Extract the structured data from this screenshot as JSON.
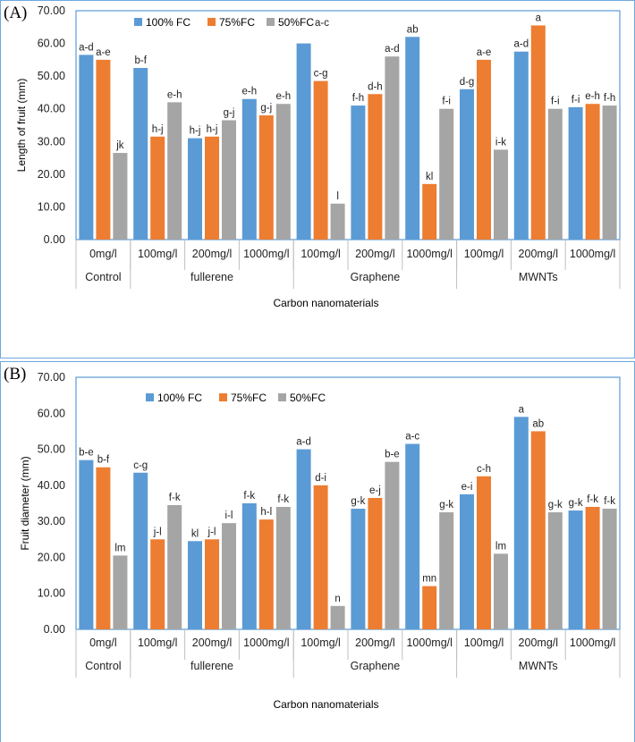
{
  "colors": {
    "s100": "#5b9bd5",
    "s75": "#ed7d31",
    "s50": "#a5a5a5"
  },
  "chart_data": [
    {
      "type": "bar",
      "panel_label": "(A)",
      "title": "",
      "xlabel": "Carbon nanomaterials",
      "ylabel": "Length of fruit (mm)",
      "ylim": [
        0,
        70
      ],
      "yticks": [
        "0.00",
        "10.00",
        "20.00",
        "30.00",
        "40.00",
        "50.00",
        "60.00",
        "70.00"
      ],
      "legend_position": "top-left",
      "categories": [
        "0mg/l",
        "100mg/l",
        "200mg/l",
        "1000mg/l",
        "100mg/l",
        "200mg/l",
        "1000mg/l",
        "100mg/l",
        "200mg/l",
        "1000mg/l"
      ],
      "groups": [
        {
          "name": "Control",
          "count": 1
        },
        {
          "name": "fullerene",
          "count": 3
        },
        {
          "name": "Graphene",
          "count": 3
        },
        {
          "name": "MWNTs",
          "count": 3
        }
      ],
      "series": [
        {
          "name": "100% FC",
          "values": [
            56.5,
            52.5,
            31.0,
            43.0,
            60.0,
            41.0,
            62.0,
            46.0,
            57.5,
            40.5
          ],
          "labels": [
            "a-d",
            "b-f",
            "h-j",
            "e-h",
            "",
            "f-h",
            "ab",
            "d-g",
            "a-d",
            "f-i"
          ]
        },
        {
          "name": "75%FC",
          "values": [
            55.0,
            31.5,
            31.5,
            38.0,
            48.5,
            44.5,
            17.0,
            55.0,
            65.5,
            41.5
          ],
          "labels": [
            "a-e",
            "h-j",
            "h-j",
            "g-j",
            "c-g",
            "d-h",
            "kl",
            "a-e",
            "a",
            "e-h"
          ]
        },
        {
          "name": "50%FC",
          "values": [
            26.5,
            42.0,
            36.5,
            41.5,
            11.0,
            56.0,
            40.0,
            27.5,
            40.0,
            41.0
          ],
          "labels": [
            "jk",
            "e-h",
            "g-j",
            "e-h",
            "l",
            "a-d",
            "f-i",
            "i-k",
            "f-i",
            "f-h"
          ]
        }
      ],
      "legend_extra_label": "a-c"
    },
    {
      "type": "bar",
      "panel_label": "(B)",
      "title": "",
      "xlabel": "Carbon nanomaterials",
      "ylabel": "Fruit diameter (mm)",
      "ylim": [
        0,
        70
      ],
      "yticks": [
        "0.00",
        "10.00",
        "20.00",
        "30.00",
        "40.00",
        "50.00",
        "60.00",
        "70.00"
      ],
      "legend_position": "top-left",
      "categories": [
        "0mg/l",
        "100mg/l",
        "200mg/l",
        "1000mg/l",
        "100mg/l",
        "200mg/l",
        "1000mg/l",
        "100mg/l",
        "200mg/l",
        "1000mg/l"
      ],
      "groups": [
        {
          "name": "Control",
          "count": 1
        },
        {
          "name": "fullerene",
          "count": 3
        },
        {
          "name": "Graphene",
          "count": 3
        },
        {
          "name": "MWNTs",
          "count": 3
        }
      ],
      "series": [
        {
          "name": "100% FC",
          "values": [
            47.0,
            43.5,
            24.5,
            35.0,
            50.0,
            33.5,
            51.5,
            37.5,
            59.0,
            33.0
          ],
          "labels": [
            "b-e",
            "c-g",
            "kl",
            "f-k",
            "a-d",
            "g-k",
            "a-c",
            "e-i",
            "a",
            "g-k"
          ]
        },
        {
          "name": "75%FC",
          "values": [
            45.0,
            25.0,
            25.0,
            30.5,
            40.0,
            36.5,
            12.0,
            42.5,
            55.0,
            34.0
          ],
          "labels": [
            "b-f",
            "j-l",
            "j-l",
            "h-l",
            "d-i",
            "e-j",
            "mn",
            "c-h",
            "ab",
            "f-k"
          ]
        },
        {
          "name": "50%FC",
          "values": [
            20.5,
            34.5,
            29.5,
            34.0,
            6.5,
            46.5,
            32.5,
            21.0,
            32.5,
            33.5
          ],
          "labels": [
            "lm",
            "f-k",
            "i-l",
            "f-k",
            "n",
            "b-e",
            "g-k",
            "lm",
            "g-k",
            "f-k"
          ]
        }
      ],
      "legend_extra_label": ""
    }
  ]
}
